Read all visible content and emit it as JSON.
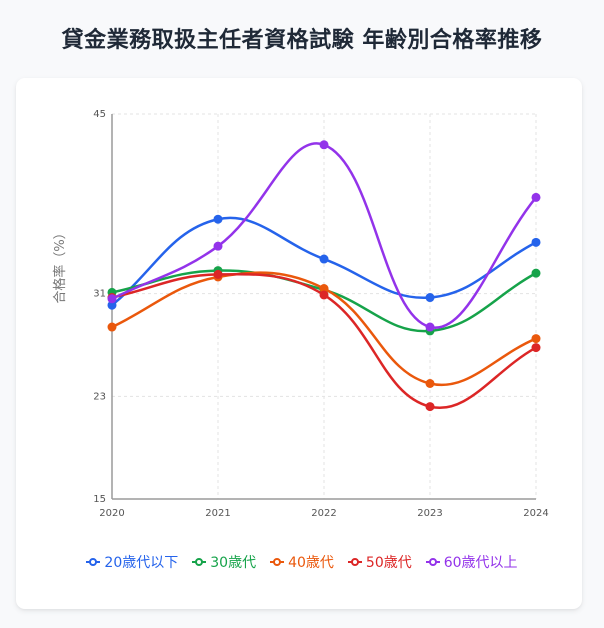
{
  "title": "貸金業務取扱主任者資格試験 年齢別合格率推移",
  "chart_data": {
    "type": "line",
    "title": "貸金業務取扱主任者資格試験 年齢別合格率推移",
    "xlabel": "",
    "ylabel": "合格率（%）",
    "x": [
      "2020",
      "2021",
      "2022",
      "2023",
      "2024"
    ],
    "ylim": [
      15,
      45
    ],
    "yticks": [
      15,
      23,
      31,
      45
    ],
    "grid": true,
    "legend_position": "bottom",
    "series": [
      {
        "name": "20歳代以下",
        "color": "#2563eb",
        "values": [
          30.1,
          36.8,
          33.7,
          30.7,
          35.0
        ]
      },
      {
        "name": "30歳代",
        "color": "#16a34a",
        "values": [
          31.1,
          32.8,
          31.3,
          28.1,
          32.6
        ]
      },
      {
        "name": "40歳代",
        "color": "#ea580c",
        "values": [
          28.4,
          32.3,
          31.4,
          24.0,
          27.5
        ]
      },
      {
        "name": "50歳代",
        "color": "#dc2626",
        "values": [
          30.7,
          32.5,
          30.9,
          22.2,
          26.8
        ]
      },
      {
        "name": "60歳代以上",
        "color": "#9333ea",
        "values": [
          30.6,
          34.7,
          42.6,
          28.4,
          38.5
        ]
      }
    ]
  },
  "legend": {
    "items": [
      {
        "label": "20歳代以下",
        "color": "#2563eb"
      },
      {
        "label": "30歳代",
        "color": "#16a34a"
      },
      {
        "label": "40歳代",
        "color": "#ea580c"
      },
      {
        "label": "50歳代",
        "color": "#dc2626"
      },
      {
        "label": "60歳代以上",
        "color": "#9333ea"
      }
    ]
  }
}
